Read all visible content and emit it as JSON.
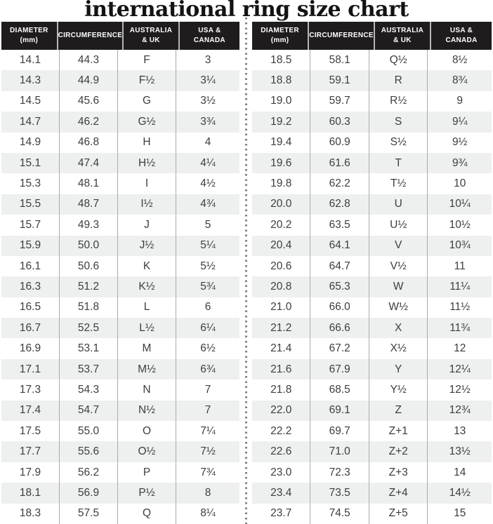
{
  "title": "international ring size chart",
  "colors": {
    "header_bg": "#1f1c1d",
    "header_text": "#ffffff",
    "row_stripe": "#eef0ef",
    "body_text": "#3d3d3f",
    "column_separator": "#ababad",
    "header_separator": "#b6b6b6",
    "divider_dot": "#7f7f7f",
    "title_color": "#141213"
  },
  "chart_data": {
    "type": "table",
    "title": "international ring size chart",
    "layout": "two side-by-side tables separated by a vertical dotted line; alternating white/gray row stripes; dark header row",
    "columns": [
      "Diameter (mm)",
      "Circumference",
      "Australia & UK",
      "USA & Canada"
    ],
    "tables": [
      {
        "headers": [
          [
            "DIAMETER",
            "(mm)"
          ],
          [
            "CIRCUMFERENCE"
          ],
          [
            "AUSTRALIA",
            "& UK"
          ],
          [
            "USA &",
            "CANADA"
          ]
        ],
        "rows": [
          [
            "14.1",
            "44.3",
            "F",
            "3"
          ],
          [
            "14.3",
            "44.9",
            "F½",
            "3¼"
          ],
          [
            "14.5",
            "45.6",
            "G",
            "3½"
          ],
          [
            "14.7",
            "46.2",
            "G½",
            "3¾"
          ],
          [
            "14.9",
            "46.8",
            "H",
            "4"
          ],
          [
            "15.1",
            "47.4",
            "H½",
            "4¼"
          ],
          [
            "15.3",
            "48.1",
            "I",
            "4½"
          ],
          [
            "15.5",
            "48.7",
            "I½",
            "4¾"
          ],
          [
            "15.7",
            "49.3",
            "J",
            "5"
          ],
          [
            "15.9",
            "50.0",
            "J½",
            "5¼"
          ],
          [
            "16.1",
            "50.6",
            "K",
            "5½"
          ],
          [
            "16.3",
            "51.2",
            "K½",
            "5¾"
          ],
          [
            "16.5",
            "51.8",
            "L",
            "6"
          ],
          [
            "16.7",
            "52.5",
            "L½",
            "6¼"
          ],
          [
            "16.9",
            "53.1",
            "M",
            "6½"
          ],
          [
            "17.1",
            "53.7",
            "M½",
            "6¾"
          ],
          [
            "17.3",
            "54.3",
            "N",
            "7"
          ],
          [
            "17.4",
            "54.7",
            "N½",
            "7"
          ],
          [
            "17.5",
            "55.0",
            "O",
            "7¼"
          ],
          [
            "17.7",
            "55.6",
            "O½",
            "7½"
          ],
          [
            "17.9",
            "56.2",
            "P",
            "7¾"
          ],
          [
            "18.1",
            "56.9",
            "P½",
            "8"
          ],
          [
            "18.3",
            "57.5",
            "Q",
            "8¼"
          ]
        ]
      },
      {
        "headers": [
          [
            "DIAMETER",
            "(mm)"
          ],
          [
            "CIRCUMFERENCE"
          ],
          [
            "AUSTRALIA",
            "& UK"
          ],
          [
            "USA &",
            "CANADA"
          ]
        ],
        "rows": [
          [
            "18.5",
            "58.1",
            "Q½",
            "8½"
          ],
          [
            "18.8",
            "59.1",
            "R",
            "8¾"
          ],
          [
            "19.0",
            "59.7",
            "R½",
            "9"
          ],
          [
            "19.2",
            "60.3",
            "S",
            "9¼"
          ],
          [
            "19.4",
            "60.9",
            "S½",
            "9½"
          ],
          [
            "19.6",
            "61.6",
            "T",
            "9¾"
          ],
          [
            "19.8",
            "62.2",
            "T½",
            "10"
          ],
          [
            "20.0",
            "62.8",
            "U",
            "10¼"
          ],
          [
            "20.2",
            "63.5",
            "U½",
            "10½"
          ],
          [
            "20.4",
            "64.1",
            "V",
            "10¾"
          ],
          [
            "20.6",
            "64.7",
            "V½",
            "11"
          ],
          [
            "20.8",
            "65.3",
            "W",
            "11¼"
          ],
          [
            "21.0",
            "66.0",
            "W½",
            "11½"
          ],
          [
            "21.2",
            "66.6",
            "X",
            "11¾"
          ],
          [
            "21.4",
            "67.2",
            "X½",
            "12"
          ],
          [
            "21.6",
            "67.9",
            "Y",
            "12¼"
          ],
          [
            "21.8",
            "68.5",
            "Y½",
            "12½"
          ],
          [
            "22.0",
            "69.1",
            "Z",
            "12¾"
          ],
          [
            "22.2",
            "69.7",
            "Z+1",
            "13"
          ],
          [
            "22.6",
            "71.0",
            "Z+2",
            "13½"
          ],
          [
            "23.0",
            "72.3",
            "Z+3",
            "14"
          ],
          [
            "23.4",
            "73.5",
            "Z+4",
            "14½"
          ],
          [
            "23.7",
            "74.5",
            "Z+5",
            "15"
          ]
        ]
      }
    ]
  }
}
